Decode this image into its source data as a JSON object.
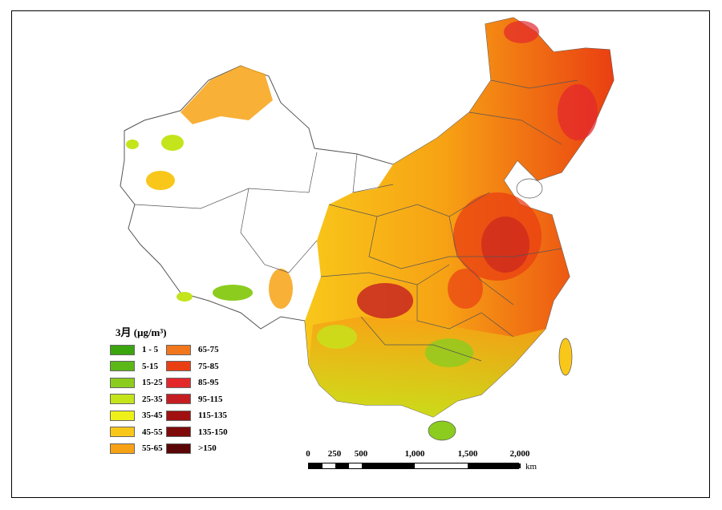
{
  "legend": {
    "title": "3月 (μg/m³)",
    "items": [
      {
        "label": "1 - 5",
        "color": "#3aa50f"
      },
      {
        "label": "5-15",
        "color": "#5cb817"
      },
      {
        "label": "15-25",
        "color": "#8ccc1f"
      },
      {
        "label": "25-35",
        "color": "#c4e41b"
      },
      {
        "label": "35-45",
        "color": "#eef01a"
      },
      {
        "label": "45-55",
        "color": "#f8c71a"
      },
      {
        "label": "55-65",
        "color": "#f7a214"
      },
      {
        "label": "65-75",
        "color": "#f2761c"
      },
      {
        "label": "75-85",
        "color": "#ea3f12"
      },
      {
        "label": "85-95",
        "color": "#e3282c"
      },
      {
        "label": "95-115",
        "color": "#c41e22"
      },
      {
        "label": "115-135",
        "color": "#a01010"
      },
      {
        "label": "135-150",
        "color": "#7e0a0a"
      },
      {
        "label": ">150",
        "color": "#5a0606"
      }
    ]
  },
  "scale": {
    "ticks": [
      "0",
      "250",
      "500",
      "1,000",
      "1,500",
      "2,000"
    ],
    "unit": "km"
  },
  "colors": {
    "no_data": "#ffffff",
    "boundary": "#555555",
    "frame": "#000000"
  }
}
